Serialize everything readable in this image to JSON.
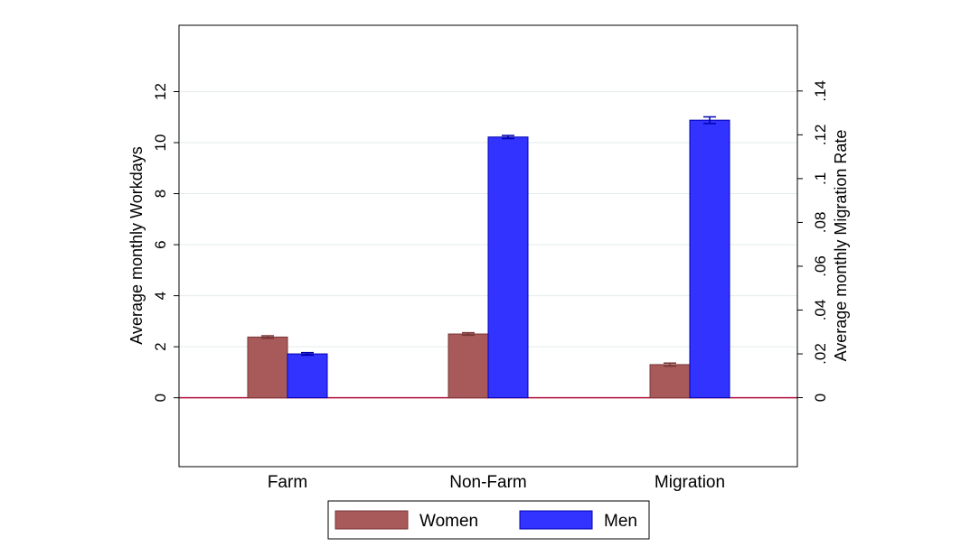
{
  "chart_data": {
    "type": "bar",
    "categories": [
      "Farm",
      "Non-Farm",
      "Migration"
    ],
    "series": [
      {
        "name": "Women",
        "axis": "left",
        "color": "#a85a5a",
        "edge": "#7a3535",
        "values": [
          2.38,
          2.5,
          1.3
        ],
        "error": [
          0.05,
          0.05,
          0.06
        ]
      },
      {
        "name": "Men",
        "axis": "left",
        "color": "#3333ff",
        "edge": "#0000b0",
        "values": [
          1.72,
          10.22,
          10.88
        ],
        "error": [
          0.05,
          0.06,
          0.13
        ]
      }
    ],
    "ylabel": "Average monthly Workdays",
    "ylabel_right": "Average monthly Migration Rate",
    "ylim": [
      -2.7,
      14.6
    ],
    "y_ticks": [
      "0",
      "2",
      "4",
      "6",
      "8",
      "10",
      "12"
    ],
    "ylim_right": [
      -0.0315,
      0.17
    ],
    "y_ticks_right": [
      "0",
      ".02",
      ".04",
      ".06",
      ".08",
      ".1",
      ".12",
      ".14"
    ],
    "grid": true,
    "zero_line_color": "#b0103a",
    "legend_position": "bottom-center"
  }
}
